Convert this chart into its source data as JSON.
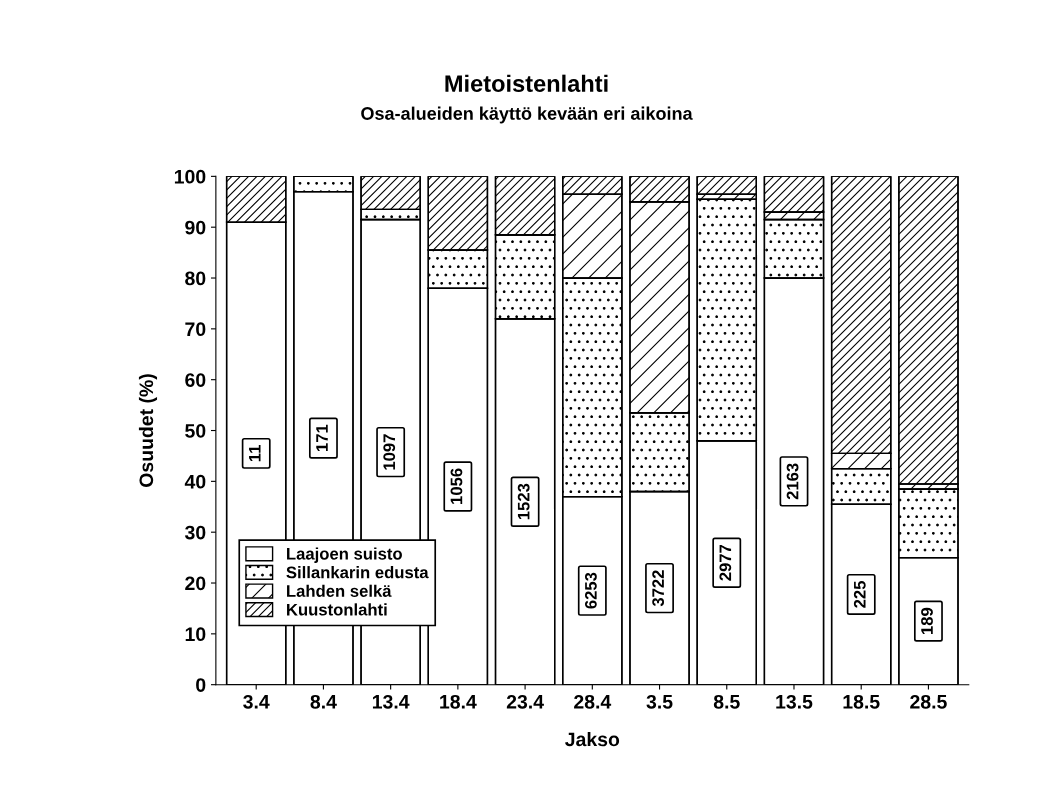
{
  "chart_data": {
    "type": "bar",
    "stacked": true,
    "title": "Mietoistenlahti",
    "subtitle": "Osa-alueiden käyttö kevään eri aikoina",
    "xlabel": "Jakso",
    "ylabel": "Osuudet (%)",
    "categories": [
      "3.4",
      "8.4",
      "13.4",
      "18.4",
      "23.4",
      "28.4",
      "3.5",
      "8.5",
      "13.5",
      "18.5",
      "28.5"
    ],
    "series": [
      {
        "name": "Laajoen suisto",
        "color": "#ffffff",
        "values": [
          91,
          97,
          91.5,
          78,
          72,
          37,
          38,
          48,
          80,
          35.5,
          25
        ]
      },
      {
        "name": "Sillankarin edusta",
        "color": "#000000",
        "values": [
          0,
          3,
          2,
          7.5,
          16.5,
          43,
          15.5,
          47.5,
          11.5,
          7,
          13.5
        ]
      },
      {
        "name": "Lahden selkä",
        "color": "#000000",
        "values": [
          0,
          0,
          0,
          0,
          0,
          16.5,
          41.5,
          1,
          1.5,
          3,
          1
        ]
      },
      {
        "name": "Kuustonlahti",
        "color": "#000000",
        "values": [
          9,
          0,
          6.5,
          14.5,
          11.5,
          3.5,
          5,
          3.5,
          7,
          54.5,
          60.5
        ]
      }
    ],
    "ylim": [
      0,
      100
    ],
    "yticks": [
      0,
      10,
      20,
      30,
      40,
      50,
      60,
      70,
      80,
      90,
      100
    ],
    "grid": false,
    "legend": "bottom left",
    "annotations": [
      "11",
      "171",
      "1097",
      "1056",
      "1523",
      "6253",
      "3722",
      "2977",
      "2163",
      "225",
      "189"
    ]
  }
}
